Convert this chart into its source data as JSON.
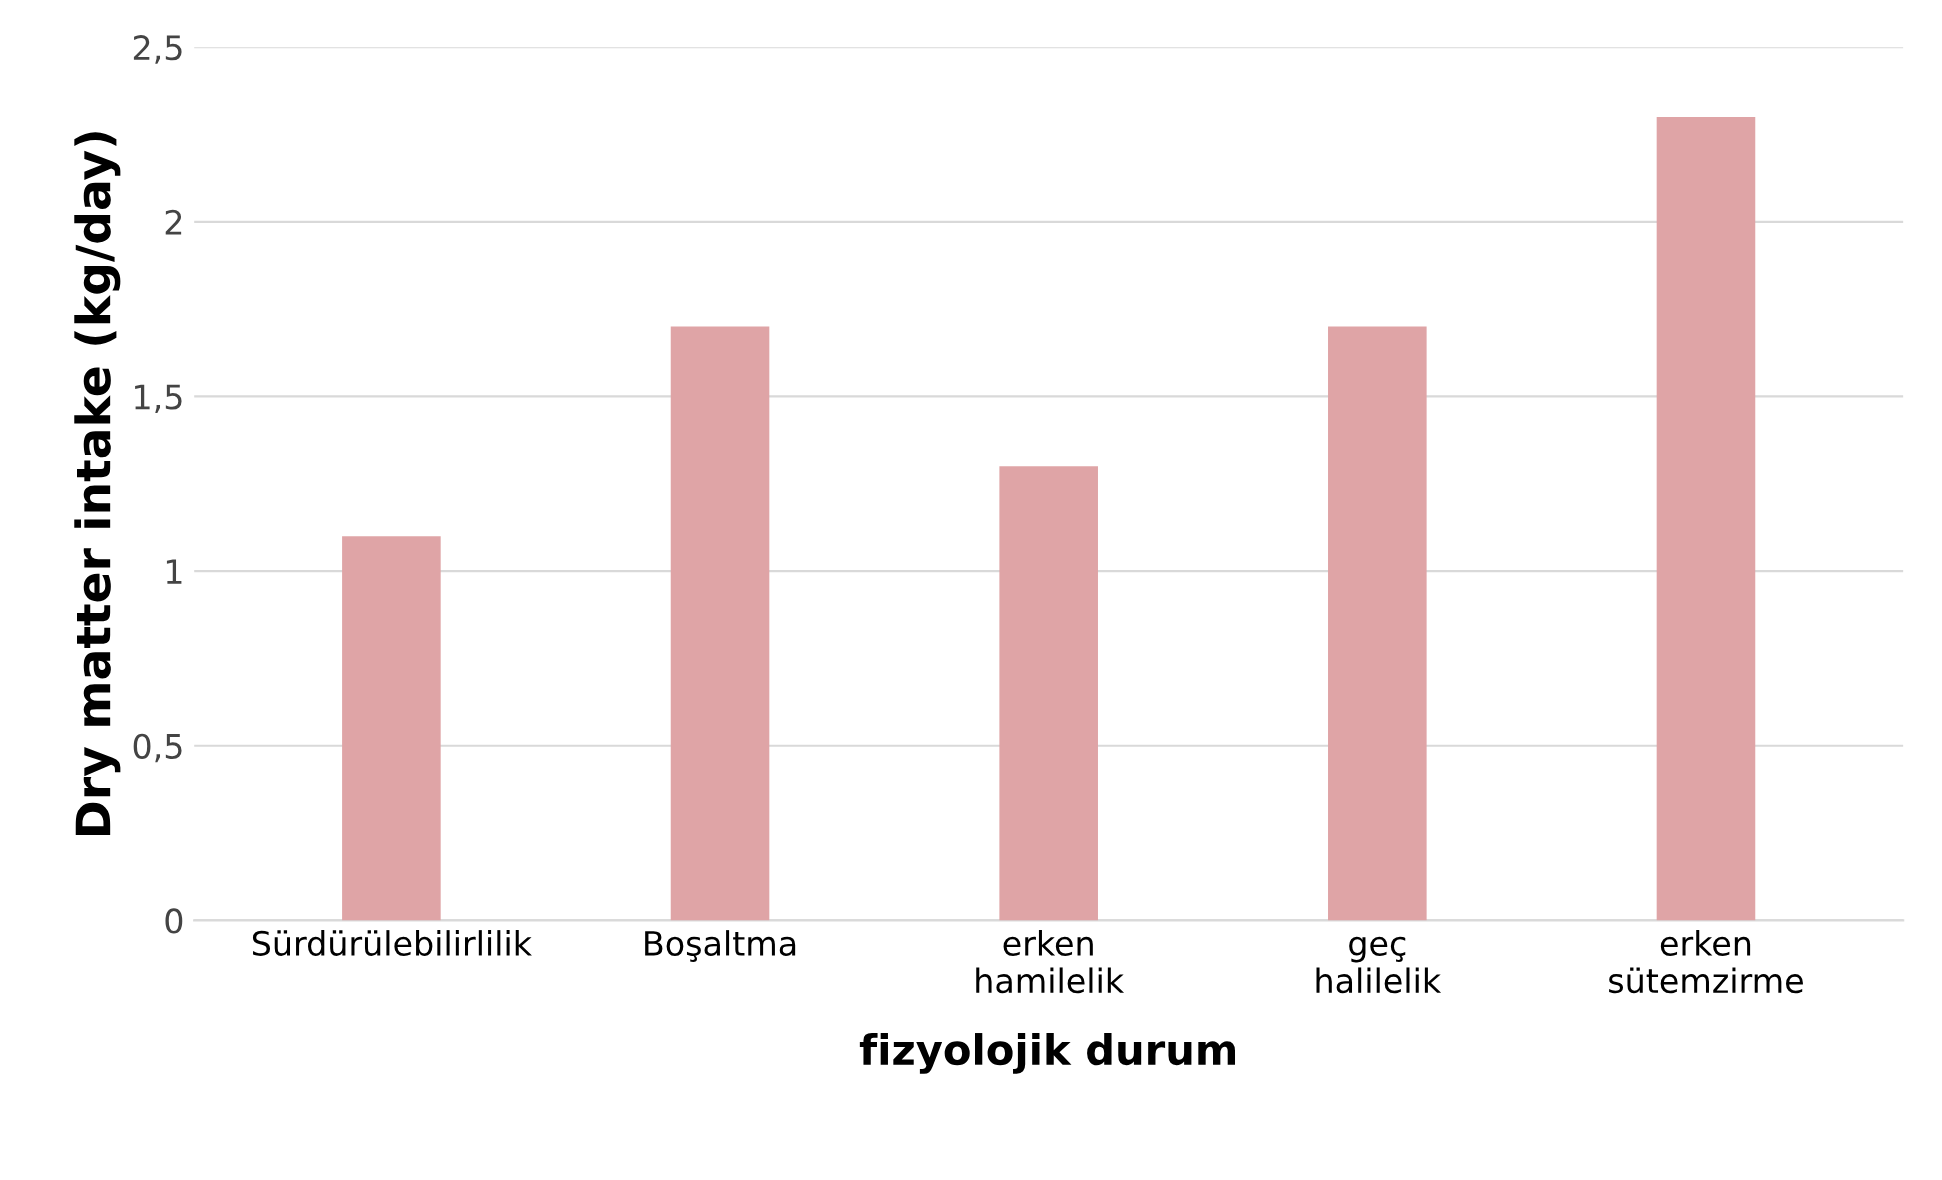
{
  "chart_data": {
    "type": "bar",
    "xlabel": "fizyolojik durum",
    "ylabel": "Dry matter intake (kg/day)",
    "categories": [
      "Sürdürülebilirlilik",
      "Boşaltma",
      "erken\nhamilelik",
      "geç\nhalilelik",
      "erken\nsütemzirme"
    ],
    "values": [
      1.1,
      1.7,
      1.3,
      1.7,
      2.3
    ],
    "color": "#dfa4a6",
    "ylim": [
      0,
      2.5
    ],
    "yticks": [
      0,
      {
        "value": 0.5,
        "label": "0,5"
      },
      1,
      {
        "value": 1.5,
        "label": "1,5"
      },
      2,
      {
        "value": 2.5,
        "label": "2,5"
      }
    ],
    "grid": "y",
    "legend": false
  }
}
